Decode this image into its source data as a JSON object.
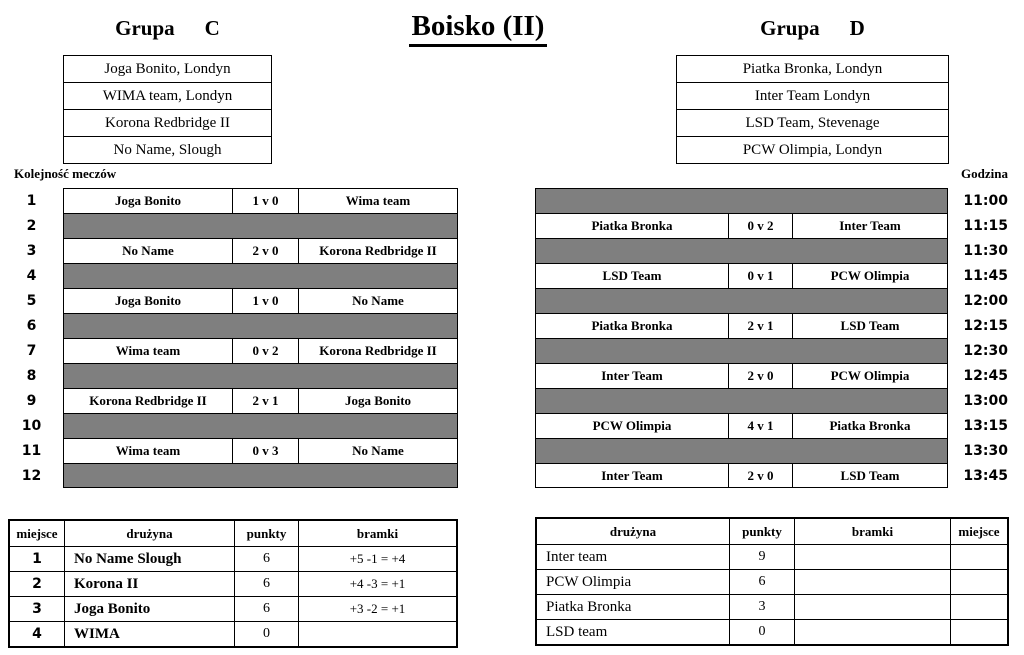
{
  "title": "Boisko (II)",
  "labels": {
    "schedule": "Kolejność meczów",
    "time": "Godzina"
  },
  "group_c": {
    "name": "Grupa",
    "letter": "C",
    "teams": [
      "Joga Bonito, Londyn",
      "WIMA team, Londyn",
      "Korona Redbridge II",
      "No Name, Slough"
    ]
  },
  "group_d": {
    "name": "Grupa",
    "letter": "D",
    "teams": [
      "Piatka Bronka, Londyn",
      "Inter Team Londyn",
      "LSD Team, Stevenage",
      "PCW Olimpia, Londyn"
    ]
  },
  "left_schedule": {
    "rows": [
      {
        "type": "match",
        "num": "1",
        "home": "Joga Bonito",
        "score": "1 v 0",
        "away": "Wima team"
      },
      {
        "type": "band",
        "num": "2"
      },
      {
        "type": "match",
        "num": "3",
        "home": "No Name",
        "score": "2 v 0",
        "away": "Korona Redbridge II"
      },
      {
        "type": "band",
        "num": "4"
      },
      {
        "type": "match",
        "num": "5",
        "home": "Joga Bonito",
        "score": "1 v 0",
        "away": "No Name"
      },
      {
        "type": "band",
        "num": "6"
      },
      {
        "type": "match",
        "num": "7",
        "home": "Wima team",
        "score": "0 v 2",
        "away": "Korona Redbridge II"
      },
      {
        "type": "band",
        "num": "8"
      },
      {
        "type": "match",
        "num": "9",
        "home": "Korona Redbridge II",
        "score": "2 v 1",
        "away": "Joga Bonito"
      },
      {
        "type": "band",
        "num": "10"
      },
      {
        "type": "match",
        "num": "11",
        "home": "Wima team",
        "score": "0 v 3",
        "away": "No Name"
      },
      {
        "type": "band",
        "num": "12"
      }
    ]
  },
  "right_schedule": {
    "rows": [
      {
        "type": "band",
        "time": "11:00"
      },
      {
        "type": "match",
        "time": "11:15",
        "home": "Piatka Bronka",
        "score": "0 v 2",
        "away": "Inter Team"
      },
      {
        "type": "band",
        "time": "11:30"
      },
      {
        "type": "match",
        "time": "11:45",
        "home": "LSD Team",
        "score": "0 v 1",
        "away": "PCW Olimpia"
      },
      {
        "type": "band",
        "time": "12:00"
      },
      {
        "type": "match",
        "time": "12:15",
        "home": "Piatka Bronka",
        "score": "2 v 1",
        "away": "LSD Team"
      },
      {
        "type": "band",
        "time": "12:30"
      },
      {
        "type": "match",
        "time": "12:45",
        "home": "Inter Team",
        "score": "2 v 0",
        "away": "PCW Olimpia"
      },
      {
        "type": "band",
        "time": "13:00"
      },
      {
        "type": "match",
        "time": "13:15",
        "home": "PCW Olimpia",
        "score": "4 v 1",
        "away": "Piatka Bronka"
      },
      {
        "type": "band",
        "time": "13:30"
      },
      {
        "type": "match",
        "time": "13:45",
        "home": "Inter Team",
        "score": "2 v 0",
        "away": "LSD Team"
      }
    ]
  },
  "left_standings": {
    "headers": {
      "miejsce": "miejsce",
      "druzyna": "drużyna",
      "punkty": "punkty",
      "bramki": "bramki"
    },
    "rows": [
      {
        "miejsce": "1",
        "druzyna": "No Name Slough",
        "punkty": "6",
        "bramki": "+5 -1 = +4"
      },
      {
        "miejsce": "2",
        "druzyna": "Korona II",
        "punkty": "6",
        "bramki": "+4 -3 = +1"
      },
      {
        "miejsce": "3",
        "druzyna": "Joga Bonito",
        "punkty": "6",
        "bramki": "+3 -2 = +1"
      },
      {
        "miejsce": "4",
        "druzyna": "WIMA",
        "punkty": "0",
        "bramki": ""
      }
    ]
  },
  "right_standings": {
    "headers": {
      "druzyna": "drużyna",
      "punkty": "punkty",
      "bramki": "bramki",
      "miejsce": "miejsce"
    },
    "rows": [
      {
        "druzyna": "Inter team",
        "punkty": "9",
        "bramki": "",
        "miejsce": ""
      },
      {
        "druzyna": "PCW Olimpia",
        "punkty": "6",
        "bramki": "",
        "miejsce": ""
      },
      {
        "druzyna": "Piatka Bronka",
        "punkty": "3",
        "bramki": "",
        "miejsce": ""
      },
      {
        "druzyna": "LSD team",
        "punkty": "0",
        "bramki": "",
        "miejsce": ""
      }
    ]
  },
  "colors": {
    "band_gray": "#7f7f7f",
    "border": "#000000",
    "background": "#ffffff",
    "text": "#000000"
  }
}
